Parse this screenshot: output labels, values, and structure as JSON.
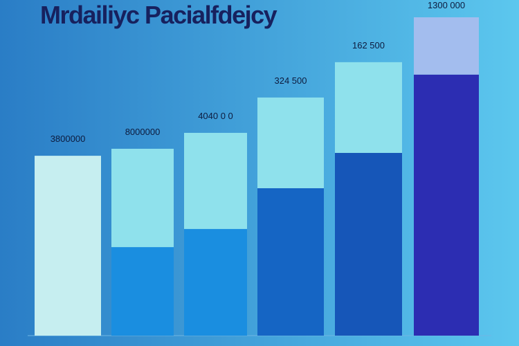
{
  "chart_data": {
    "type": "stacked-bar",
    "title": "Mrdailiyc Pacialfdejcy",
    "categories": [
      null,
      null,
      null,
      null,
      null,
      null
    ],
    "series": [
      {
        "colors": [
          "#c6eef0",
          "#1a8ee0",
          "#1a8ee0",
          "#1565c4",
          "#1656b8",
          "#2c2db2"
        ],
        "values": [
          56.5,
          27.8,
          33.5,
          46.3,
          57.4,
          82
        ]
      },
      {
        "colors": [
          "#8fe1ec",
          "#8fe1ec",
          "#8fe1ec",
          "#8fe1ec",
          "#8fe1ec",
          "#a3bdee"
        ],
        "values": [
          null,
          30.9,
          30.2,
          28.5,
          28.5,
          18
        ]
      }
    ],
    "annotations": [
      "3800000",
      "8000000",
      "4040 0 0",
      "324 500",
      "162 500",
      "1300 000"
    ],
    "ylim": [
      0,
      100
    ]
  }
}
